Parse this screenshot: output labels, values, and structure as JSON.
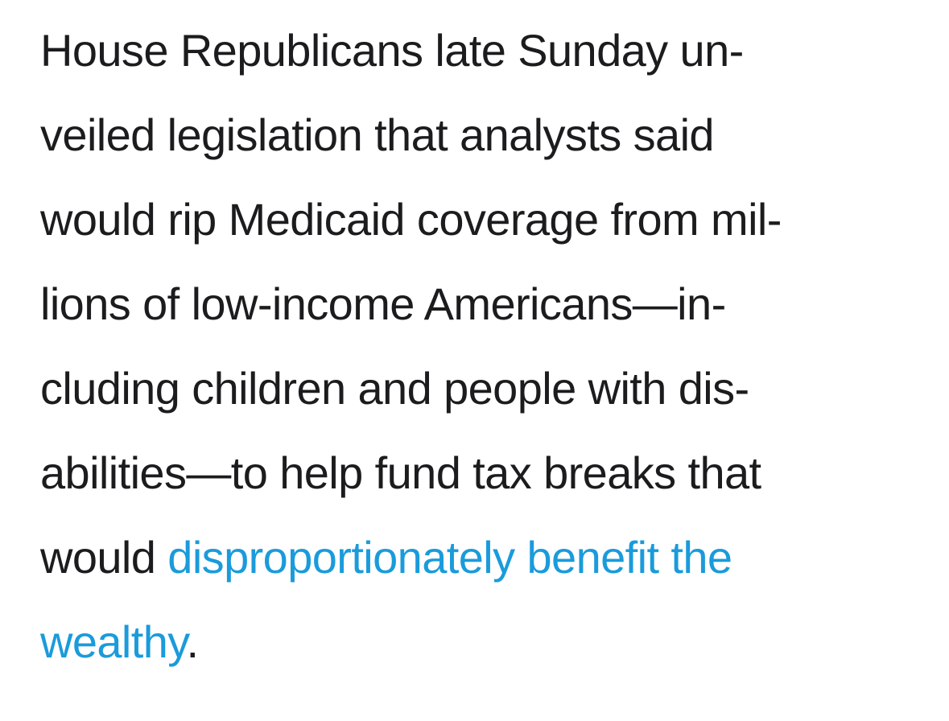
{
  "article": {
    "lines": [
      "House Republicans late Sunday un-",
      "veiled legislation that analysts said",
      "would rip Medicaid coverage from mil-",
      "lions of low-income Americans—in-",
      "cluding children and people with dis-",
      "abilities—to help fund tax breaks that"
    ],
    "line7_prefix": "would ",
    "link_part1": "disproportionately benefit the",
    "link_part2": "wealthy",
    "end_punctuation": "."
  },
  "colors": {
    "text": "#1c1c1e",
    "link": "#1a9bdb",
    "background": "#ffffff"
  }
}
